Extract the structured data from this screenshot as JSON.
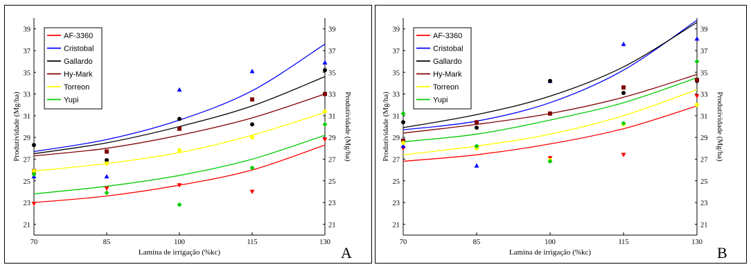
{
  "chart_data": [
    {
      "type": "scatter",
      "panel_label": "A",
      "xlabel": "Lamina de irrigação (%kc)",
      "ylabel": "Produtividade (Mg/ha)",
      "ylabel_right": "Produtividade (Mg/ha)",
      "x": [
        70,
        85,
        100,
        115,
        130
      ],
      "x_ticks": [
        "70",
        "85",
        "100",
        "115",
        "130"
      ],
      "y_ticks": [
        "21",
        "23",
        "25",
        "27",
        "29",
        "31",
        "33",
        "35",
        "37",
        "39"
      ],
      "xlim": [
        70,
        130
      ],
      "ylim": [
        20,
        40
      ],
      "legend_position": "top-left",
      "series": [
        {
          "name": "AF-3360",
          "color": "#ff0000",
          "marker": "triangle-down",
          "values": [
            22.9,
            24.3,
            24.6,
            24.0,
            28.8
          ],
          "fit": [
            23.0,
            23.6,
            24.6,
            26.0,
            28.3
          ]
        },
        {
          "name": "Cristobal",
          "color": "#0000ff",
          "marker": "triangle-up",
          "values": [
            25.4,
            25.4,
            33.4,
            35.1,
            35.9
          ],
          "fit": [
            27.7,
            28.8,
            30.6,
            33.3,
            37.6
          ]
        },
        {
          "name": "Gallardo",
          "color": "#000000",
          "marker": "circle",
          "values": [
            28.3,
            26.9,
            30.7,
            30.2,
            35.2
          ],
          "fit": [
            27.5,
            28.5,
            30.0,
            31.9,
            34.6
          ]
        },
        {
          "name": "Hy-Mark",
          "color": "#800000",
          "marker": "square",
          "values": [
            25.9,
            27.7,
            29.8,
            32.5,
            33.0
          ],
          "fit": [
            27.3,
            28.0,
            29.2,
            30.8,
            33.0
          ]
        },
        {
          "name": "Torreon",
          "color": "#ffff00",
          "marker": "circle",
          "values": [
            25.9,
            26.6,
            27.8,
            29.0,
            31.4
          ],
          "fit": [
            25.9,
            26.6,
            27.6,
            29.2,
            31.3
          ]
        },
        {
          "name": "Yupi",
          "color": "#00cc00",
          "marker": "diamond",
          "values": [
            25.6,
            23.9,
            22.8,
            26.2,
            30.2
          ],
          "fit": [
            23.8,
            24.5,
            25.5,
            27.0,
            29.2
          ]
        }
      ]
    },
    {
      "type": "scatter",
      "panel_label": "B",
      "xlabel": "Lamina de irrigação (%kc)",
      "ylabel": "Produtividade (Mg/ha)",
      "ylabel_right": "Produtividade (Mg/ha)",
      "x": [
        70,
        85,
        100,
        115,
        130
      ],
      "x_ticks": [
        "70",
        "85",
        "100",
        "115",
        "130"
      ],
      "y_ticks": [
        "21",
        "23",
        "25",
        "27",
        "29",
        "31",
        "33",
        "35",
        "37",
        "39"
      ],
      "xlim": [
        70,
        130
      ],
      "ylim": [
        20,
        40
      ],
      "legend_position": "top-left",
      "series": [
        {
          "name": "AF-3360",
          "color": "#ff0000",
          "marker": "triangle-down",
          "values": [
            28.0,
            28.0,
            27.1,
            27.4,
            32.8
          ],
          "fit": [
            26.8,
            27.4,
            28.4,
            29.8,
            31.9
          ]
        },
        {
          "name": "Cristobal",
          "color": "#0000ff",
          "marker": "triangle-up",
          "values": [
            28.2,
            26.4,
            34.2,
            37.6,
            38.1
          ],
          "fit": [
            29.7,
            30.5,
            32.2,
            35.2,
            39.8
          ]
        },
        {
          "name": "Gallardo",
          "color": "#000000",
          "marker": "circle",
          "values": [
            30.4,
            29.9,
            34.2,
            33.1,
            34.2
          ],
          "fit": [
            29.9,
            31.1,
            32.8,
            35.5,
            39.6
          ]
        },
        {
          "name": "Hy-Mark",
          "color": "#800000",
          "marker": "square",
          "values": [
            28.7,
            30.4,
            31.2,
            33.6,
            34.3
          ],
          "fit": [
            29.4,
            30.2,
            31.2,
            32.7,
            34.8
          ]
        },
        {
          "name": "Torreon",
          "color": "#ffff00",
          "marker": "circle",
          "values": [
            28.5,
            28.0,
            26.9,
            30.2,
            32.0
          ],
          "fit": [
            27.4,
            28.2,
            29.3,
            31.0,
            33.4
          ]
        },
        {
          "name": "Yupi",
          "color": "#00cc00",
          "marker": "diamond",
          "values": [
            31.2,
            28.2,
            26.8,
            30.3,
            36.0
          ],
          "fit": [
            28.6,
            29.3,
            30.6,
            32.2,
            34.5
          ]
        }
      ]
    }
  ]
}
